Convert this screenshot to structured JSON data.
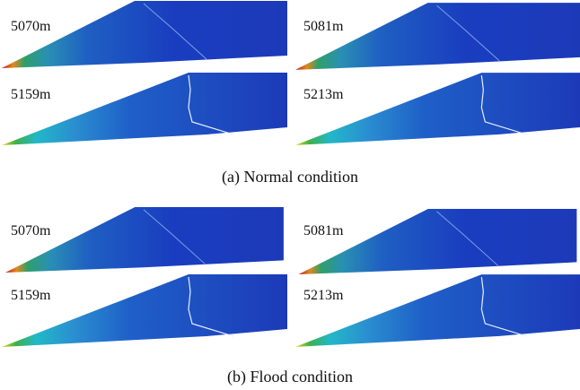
{
  "figure": {
    "groups": [
      {
        "panels": [
          {
            "label": "5070m"
          },
          {
            "label": "5081m"
          },
          {
            "label": "5159m"
          },
          {
            "label": "5213m"
          }
        ],
        "caption": "(a) Normal condition"
      },
      {
        "panels": [
          {
            "label": "5070m"
          },
          {
            "label": "5081m"
          },
          {
            "label": "5159m"
          },
          {
            "label": "5213m"
          }
        ],
        "caption": "(b) Flood condition"
      }
    ]
  }
}
